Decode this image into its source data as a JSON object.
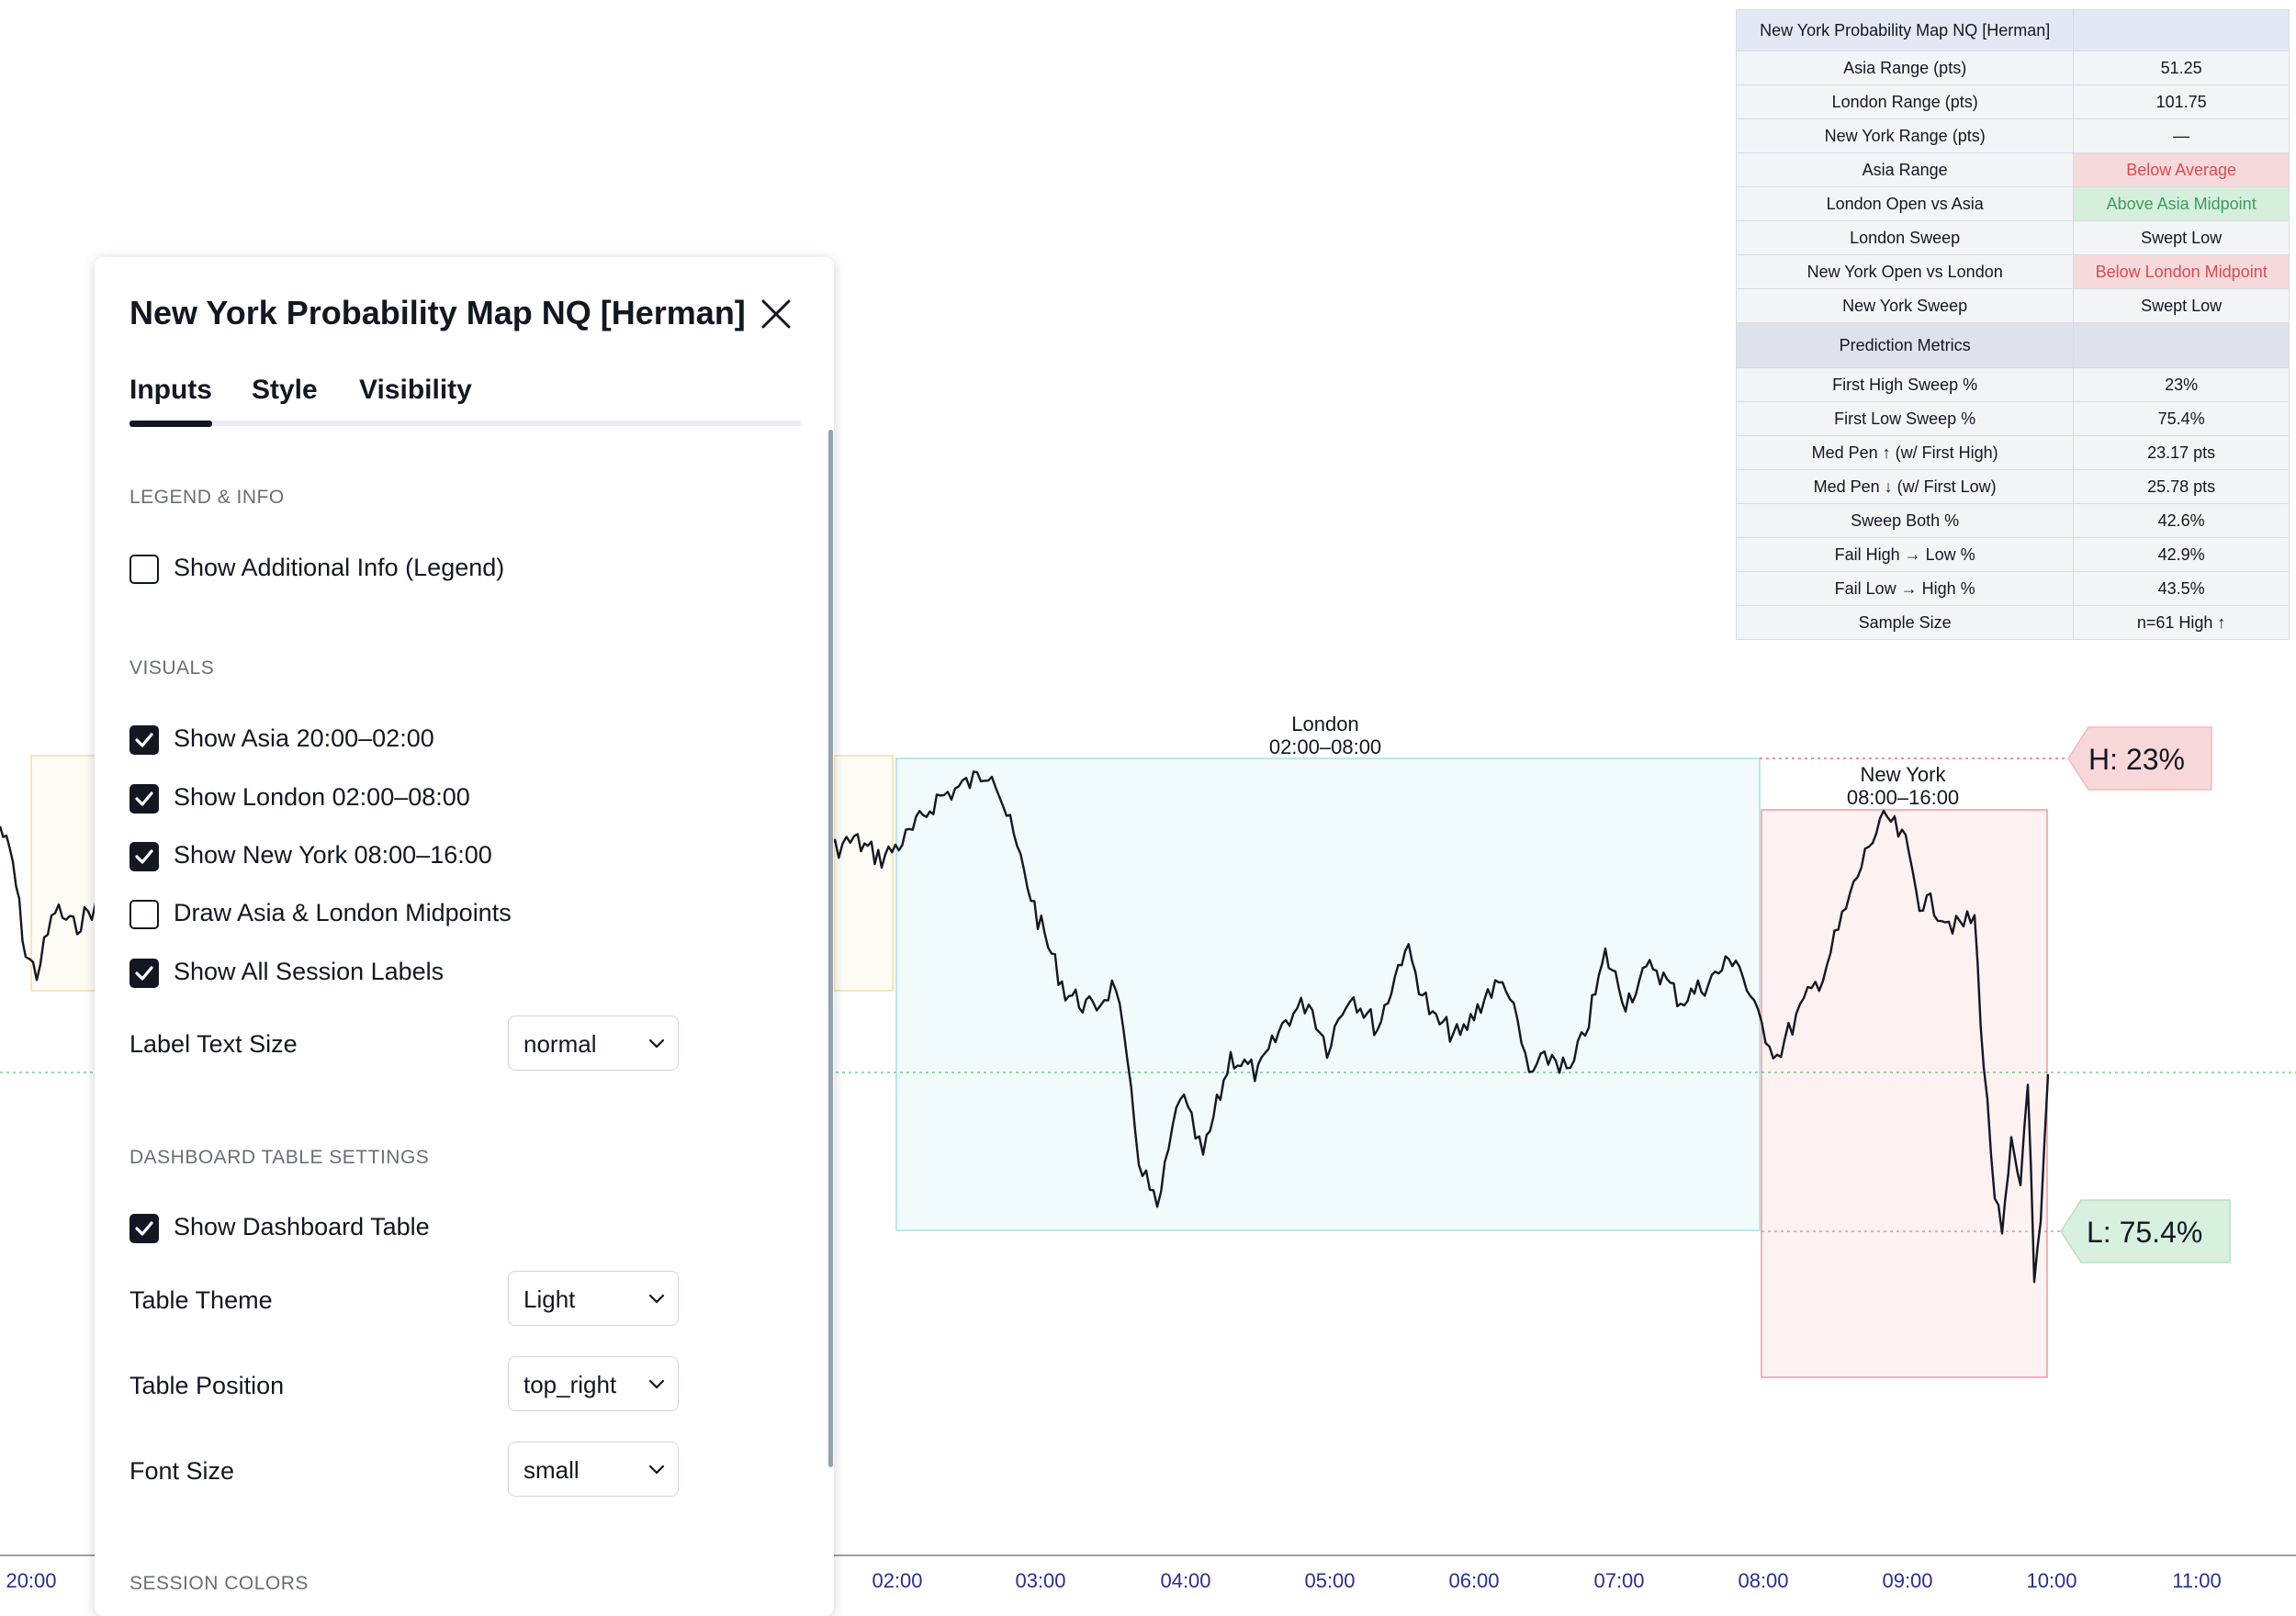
{
  "chart": {
    "sessions": [
      {
        "name": "London",
        "time": "02:00–08:00"
      },
      {
        "name": "New York",
        "time": "08:00–16:00"
      }
    ],
    "badges": {
      "high": "H: 23%",
      "low": "L: 75.4%"
    },
    "time_axis": [
      "20:00",
      "02:00",
      "03:00",
      "04:00",
      "05:00",
      "06:00",
      "07:00",
      "08:00",
      "09:00",
      "10:00",
      "11:00"
    ]
  },
  "table": {
    "title": "New York Probability Map NQ [Herman]",
    "rows": [
      {
        "label": "Asia Range (pts)",
        "value": "51.25"
      },
      {
        "label": "London Range (pts)",
        "value": "101.75"
      },
      {
        "label": "New York Range (pts)",
        "value": "—"
      },
      {
        "label": "Asia Range",
        "value": "Below Average"
      },
      {
        "label": "London Open vs Asia",
        "value": "Above Asia Midpoint"
      },
      {
        "label": "London Sweep",
        "value": "Swept Low"
      },
      {
        "label": "New York Open vs London",
        "value": "Below London Midpoint"
      },
      {
        "label": "New York Sweep",
        "value": "Swept Low"
      }
    ],
    "section": "Prediction Metrics",
    "metrics": [
      {
        "label": "First High Sweep %",
        "value": "23%"
      },
      {
        "label": "First Low Sweep %",
        "value": "75.4%"
      },
      {
        "label": "Med Pen ↑ (w/ First High)",
        "value": "23.17 pts"
      },
      {
        "label": "Med Pen ↓ (w/ First Low)",
        "value": "25.78 pts"
      },
      {
        "label": "Sweep Both %",
        "value": "42.6%"
      },
      {
        "label": "Fail High → Low %",
        "value": "42.9%"
      },
      {
        "label": "Fail Low → High %",
        "value": "43.5%"
      },
      {
        "label": "Sample Size",
        "value": "n=61 High ↑"
      }
    ],
    "colors": {
      "negative_bg": "#f6d9db",
      "negative_text": "#d84b52",
      "positive_bg": "#d6efdd",
      "positive_text": "#3f9b5f"
    }
  },
  "dialog": {
    "title": "New York Probability Map NQ [Herman]",
    "tabs": [
      {
        "label": "Inputs",
        "active": true
      },
      {
        "label": "Style",
        "active": false
      },
      {
        "label": "Visibility",
        "active": false
      }
    ],
    "sections": {
      "legend": "LEGEND & INFO",
      "visuals": "VISUALS",
      "dashboard": "DASHBOARD TABLE SETTINGS",
      "colors": "SESSION COLORS"
    },
    "checkboxes": {
      "additional_info": {
        "label": "Show Additional Info (Legend)",
        "checked": false
      },
      "asia": {
        "label": "Show Asia 20:00–02:00",
        "checked": true
      },
      "london": {
        "label": "Show London 02:00–08:00",
        "checked": true
      },
      "new_york": {
        "label": "Show New York 08:00–16:00",
        "checked": true
      },
      "midpoints": {
        "label": "Draw Asia & London Midpoints",
        "checked": false
      },
      "session_labels": {
        "label": "Show All Session Labels",
        "checked": true
      },
      "dashboard_table": {
        "label": "Show Dashboard Table",
        "checked": true
      }
    },
    "fields": {
      "label_text_size": {
        "label": "Label Text Size",
        "value": "normal"
      },
      "table_theme": {
        "label": "Table Theme",
        "value": "Light"
      },
      "table_position": {
        "label": "Table Position",
        "value": "top_right"
      },
      "font_size": {
        "label": "Font Size",
        "value": "small"
      }
    }
  }
}
